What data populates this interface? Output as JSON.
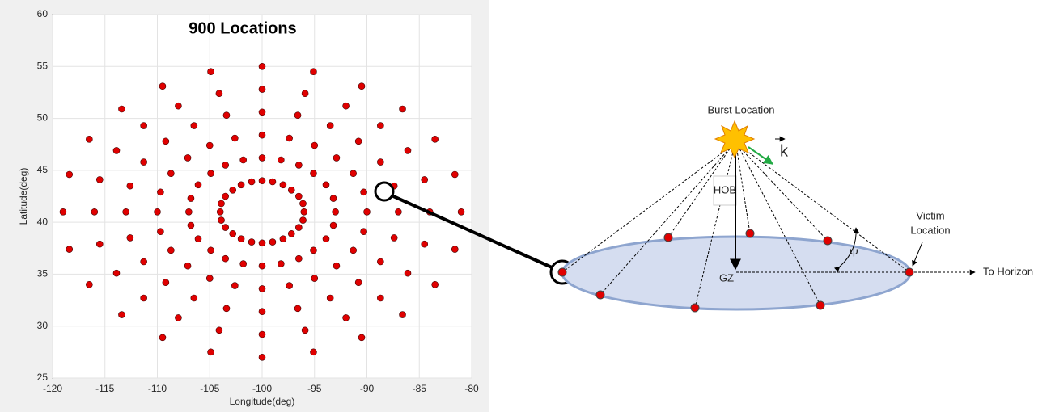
{
  "chart_data": {
    "type": "scatter",
    "title": "900 Locations",
    "x_label": "Longitude(deg)",
    "y_label": "Latitude(deg)",
    "xlim": [
      -120,
      -80
    ],
    "ylim": [
      25,
      60
    ],
    "xticks": [
      -120,
      -115,
      -110,
      -105,
      -100,
      -95,
      -90,
      -85,
      -80
    ],
    "yticks": [
      25,
      30,
      35,
      40,
      45,
      50,
      55,
      60
    ],
    "grid": true,
    "series": [
      {
        "color": "#e00000",
        "x": [
          -81,
          -81.6,
          -83.5,
          -86.6,
          -90.5,
          -95.1,
          -100,
          -104.9,
          -109.5,
          -113.4,
          -116.5,
          -118.4,
          -119,
          -118.4,
          -116.5,
          -113.4,
          -109.5,
          -104.9,
          -100,
          -95.1,
          -90.5,
          -86.6,
          -83.5,
          -81.6,
          -84,
          -84.5,
          -86.1,
          -88.7,
          -92,
          -95.9,
          -100,
          -104.1,
          -108,
          -111.3,
          -113.9,
          -115.5,
          -116,
          -115.5,
          -113.9,
          -111.3,
          -108,
          -104.1,
          -100,
          -95.9,
          -92,
          -88.7,
          -86.1,
          -84.5,
          -87,
          -87.4,
          -88.7,
          -90.8,
          -93.5,
          -96.6,
          -100,
          -103.4,
          -106.5,
          -109.2,
          -111.3,
          -112.6,
          -113,
          -112.6,
          -111.3,
          -109.2,
          -106.5,
          -103.4,
          -100,
          -96.6,
          -93.5,
          -90.8,
          -88.7,
          -87.4,
          -90,
          -90.3,
          -91.3,
          -92.9,
          -95,
          -97.4,
          -100,
          -102.6,
          -105,
          -107.1,
          -108.7,
          -109.7,
          -110,
          -109.7,
          -108.7,
          -107.1,
          -105,
          -102.6,
          -100,
          -97.4,
          -95,
          -92.9,
          -91.3,
          -90.3,
          -93,
          -93.2,
          -93.9,
          -95.1,
          -96.5,
          -98.2,
          -100,
          -101.8,
          -103.5,
          -104.9,
          -106.1,
          -106.8,
          -107,
          -106.8,
          -106.1,
          -104.9,
          -103.5,
          -101.8,
          -100,
          -98.2,
          -96.5,
          -95.1,
          -93.9,
          -93.2,
          -96,
          -96.1,
          -96.5,
          -97.2,
          -98,
          -99,
          -100,
          -101,
          -102,
          -102.8,
          -103.5,
          -103.9,
          -104,
          -103.9,
          -103.5,
          -102.8,
          -102,
          -101,
          -100,
          -99,
          -98,
          -97.2,
          -96.5,
          -96.1
        ],
        "y": [
          41,
          44.6,
          48,
          50.9,
          53.1,
          54.5,
          55,
          54.5,
          53.1,
          50.9,
          48,
          44.6,
          41,
          37.4,
          34,
          31.1,
          28.9,
          27.5,
          27,
          27.5,
          28.9,
          31.1,
          34,
          37.4,
          41,
          44.1,
          46.9,
          49.3,
          51.2,
          52.4,
          52.8,
          52.4,
          51.2,
          49.3,
          46.9,
          44.1,
          41,
          37.9,
          35.1,
          32.7,
          30.8,
          29.6,
          29.2,
          29.6,
          30.8,
          32.7,
          35.1,
          37.9,
          41,
          43.5,
          45.8,
          47.8,
          49.3,
          50.3,
          50.6,
          50.3,
          49.3,
          47.8,
          45.8,
          43.5,
          41,
          38.5,
          36.2,
          34.2,
          32.7,
          31.7,
          31.4,
          31.7,
          32.7,
          34.2,
          36.2,
          38.5,
          41,
          42.9,
          44.7,
          46.2,
          47.4,
          48.1,
          48.4,
          48.1,
          47.4,
          46.2,
          44.7,
          42.9,
          41,
          39.1,
          37.3,
          35.8,
          34.6,
          33.9,
          33.6,
          33.9,
          34.6,
          35.8,
          37.3,
          39.1,
          41,
          42.3,
          43.6,
          44.7,
          45.5,
          46,
          46.2,
          46,
          45.5,
          44.7,
          43.6,
          42.3,
          41,
          39.7,
          38.4,
          37.3,
          36.5,
          36,
          35.8,
          36,
          36.5,
          37.3,
          38.4,
          39.7,
          41,
          41.8,
          42.5,
          43.1,
          43.6,
          43.9,
          44,
          43.9,
          43.6,
          43.1,
          42.5,
          41.8,
          41,
          40.2,
          39.5,
          38.9,
          38.4,
          38.1,
          38,
          38.1,
          38.4,
          38.9,
          39.5,
          40.2
        ]
      }
    ]
  },
  "diagram": {
    "burst": "Burst Location",
    "k": "k",
    "hob": "HOB",
    "gz": "GZ",
    "psi": "Ψ",
    "victim": [
      "Victim",
      "Location"
    ],
    "horizon": "To Horizon"
  }
}
